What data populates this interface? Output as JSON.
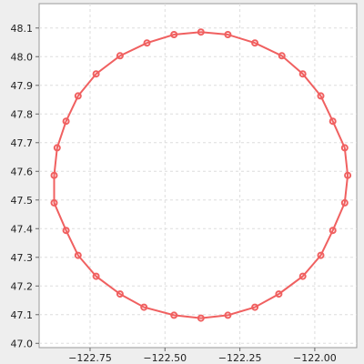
{
  "chart_data": {
    "type": "line",
    "title": "",
    "xlabel": "",
    "ylabel": "",
    "xlim": [
      -122.92,
      -121.86
    ],
    "ylim": [
      46.985,
      48.185
    ],
    "x_ticks": [
      -122.75,
      -122.5,
      -122.25,
      -122.0
    ],
    "x_tick_labels": [
      "−122.75",
      "−122.50",
      "−122.25",
      "−122.00"
    ],
    "y_ticks": [
      47.0,
      47.1,
      47.2,
      47.3,
      47.4,
      47.5,
      47.6,
      47.7,
      47.8,
      47.9,
      48.0,
      48.1
    ],
    "y_tick_labels": [
      "47.0",
      "47.1",
      "47.2",
      "47.3",
      "47.4",
      "47.5",
      "47.6",
      "47.7",
      "47.8",
      "47.9",
      "48.0",
      "48.1"
    ],
    "grid": true,
    "legend": "none",
    "series_color": "#f06060",
    "plot_background": "#ffffff",
    "grid_color": "#dddddd",
    "series": [
      {
        "points": [
          [
            -122.38,
            48.086
          ],
          [
            -122.29,
            48.077
          ],
          [
            -122.2,
            48.048
          ],
          [
            -122.11,
            48.003
          ],
          [
            -122.04,
            47.94
          ],
          [
            -121.98,
            47.863
          ],
          [
            -121.94,
            47.775
          ],
          [
            -121.9,
            47.682
          ],
          [
            -121.89,
            47.586
          ],
          [
            -121.9,
            47.49
          ],
          [
            -121.94,
            47.394
          ],
          [
            -121.98,
            47.307
          ],
          [
            -122.04,
            47.234
          ],
          [
            -122.12,
            47.172
          ],
          [
            -122.2,
            47.126
          ],
          [
            -122.29,
            47.098
          ],
          [
            -122.38,
            47.088
          ],
          [
            -122.47,
            47.098
          ],
          [
            -122.57,
            47.126
          ],
          [
            -122.65,
            47.172
          ],
          [
            -122.73,
            47.234
          ],
          [
            -122.79,
            47.307
          ],
          [
            -122.83,
            47.394
          ],
          [
            -122.87,
            47.49
          ],
          [
            -122.87,
            47.586
          ],
          [
            -122.86,
            47.682
          ],
          [
            -122.83,
            47.775
          ],
          [
            -122.79,
            47.863
          ],
          [
            -122.73,
            47.94
          ],
          [
            -122.65,
            48.003
          ],
          [
            -122.56,
            48.048
          ],
          [
            -122.47,
            48.077
          ]
        ]
      }
    ]
  }
}
